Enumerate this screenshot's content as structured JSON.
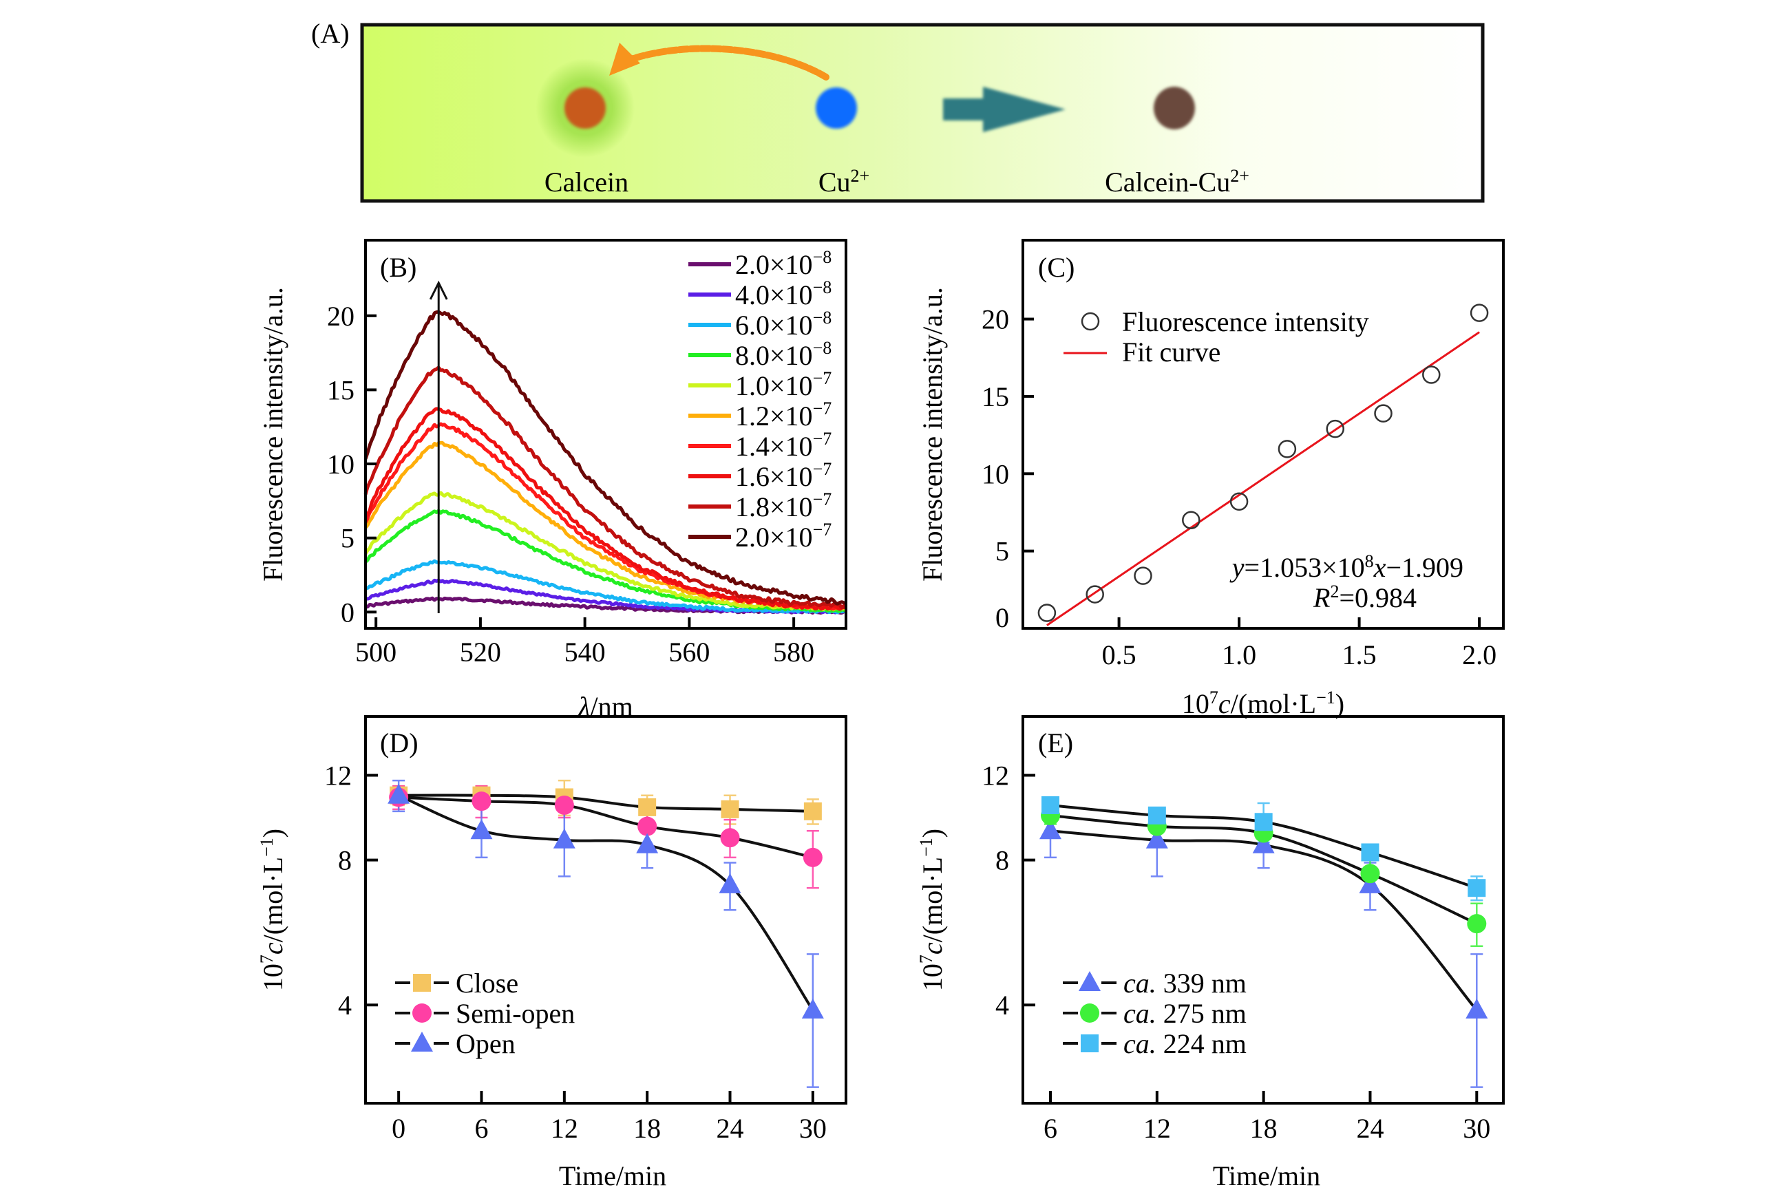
{
  "figure": {
    "panel_a": {
      "label": "(A)",
      "species": [
        {
          "name": "Calcein",
          "color": "#c85a1e",
          "glow": "#9ee048",
          "superscript": ""
        },
        {
          "name": "Cu",
          "color": "#0a6cff",
          "glow": "",
          "superscript": "2+"
        },
        {
          "name": "Calcein-Cu",
          "color": "#6b4a3c",
          "glow": "",
          "superscript": "2+"
        }
      ],
      "background_colors": [
        "#d2fd66",
        "#e4fbb0",
        "#ffffff"
      ],
      "curved_arrow_color": "#f7941d",
      "reaction_arrow_color": "#2f7a82"
    }
  },
  "chart_data": [
    {
      "panel": "B",
      "label": "(B)",
      "type": "line",
      "title": "",
      "xlabel": "λ/nm",
      "ylabel": "Fluorescence intensity/a.u.",
      "xlim": [
        498,
        590
      ],
      "ylim": [
        -1.1,
        25.1
      ],
      "xticks": [
        500,
        520,
        540,
        560,
        580
      ],
      "yticks": [
        0,
        5,
        10,
        15,
        20
      ],
      "grid": false,
      "legend_position": "top-right",
      "annotation": "arrow up at λ ≈ 512 nm (increasing concentration)",
      "annotation_x": 512,
      "x": [
        498,
        500,
        505,
        510,
        512,
        515,
        520,
        525,
        530,
        540,
        550,
        560,
        570,
        580,
        590
      ],
      "series": [
        {
          "name": "2.0×10⁻⁸",
          "base": "2.0×10",
          "exp": "−8",
          "color": "#6a0f6e",
          "values": [
            0.4,
            0.5,
            0.7,
            0.85,
            0.9,
            0.88,
            0.8,
            0.68,
            0.55,
            0.35,
            0.2,
            0.1,
            0.05,
            0.02,
            0.0
          ]
        },
        {
          "name": "4.0×10⁻⁸",
          "base": "4.0×10",
          "exp": "−8",
          "color": "#5b1ee6",
          "values": [
            0.9,
            1.1,
            1.6,
            2.0,
            2.1,
            2.05,
            1.85,
            1.55,
            1.25,
            0.75,
            0.4,
            0.2,
            0.1,
            0.05,
            0.02
          ]
        },
        {
          "name": "6.0×10⁻⁸",
          "base": "6.0×10",
          "exp": "−8",
          "color": "#17b5f5",
          "values": [
            1.6,
            1.9,
            2.7,
            3.3,
            3.4,
            3.3,
            3.0,
            2.6,
            2.1,
            1.3,
            0.7,
            0.35,
            0.15,
            0.08,
            0.05
          ]
        },
        {
          "name": "8.0×10⁻⁸",
          "base": "8.0×10",
          "exp": "−8",
          "color": "#22ee22",
          "values": [
            3.4,
            4.1,
            5.5,
            6.6,
            6.8,
            6.6,
            6.0,
            5.2,
            4.3,
            2.7,
            1.55,
            0.8,
            0.4,
            0.2,
            0.1
          ]
        },
        {
          "name": "1.0×10⁻⁷",
          "base": "1.0×10",
          "exp": "−7",
          "color": "#ccf41c",
          "values": [
            4.0,
            4.9,
            6.5,
            7.8,
            8.0,
            7.8,
            7.1,
            6.2,
            5.2,
            3.3,
            1.9,
            1.0,
            0.5,
            0.3,
            0.2
          ]
        },
        {
          "name": "1.2×10⁻⁷",
          "base": "1.2×10",
          "exp": "−7",
          "color": "#ffae0a",
          "values": [
            5.6,
            6.9,
            9.2,
            11.1,
            11.4,
            11.1,
            10.0,
            8.6,
            7.1,
            4.4,
            2.5,
            1.3,
            0.7,
            0.4,
            0.3
          ]
        },
        {
          "name": "1.4×10⁻⁷",
          "base": "1.4×10",
          "exp": "−7",
          "color": "#ff1a1a",
          "values": [
            6.0,
            7.5,
            10.2,
            12.3,
            12.7,
            12.4,
            11.3,
            9.8,
            8.1,
            5.0,
            2.9,
            1.5,
            0.8,
            0.4,
            0.3
          ]
        },
        {
          "name": "1.6×10⁻⁷",
          "base": "1.6×10",
          "exp": "−7",
          "color": "#ee1010",
          "values": [
            6.2,
            8.0,
            11.0,
            13.3,
            13.7,
            13.4,
            12.2,
            10.6,
            8.8,
            5.5,
            3.1,
            1.6,
            0.8,
            0.4,
            0.3
          ]
        },
        {
          "name": "1.8×10⁻⁷",
          "base": "1.8×10",
          "exp": "−7",
          "color": "#c2100f",
          "values": [
            8.0,
            9.8,
            13.3,
            16.0,
            16.4,
            16.0,
            14.6,
            12.8,
            10.7,
            6.9,
            4.0,
            2.2,
            1.1,
            0.6,
            0.4
          ]
        },
        {
          "name": "2.0×10⁻⁷",
          "base": "2.0×10",
          "exp": "−7",
          "color": "#6a0707",
          "values": [
            10.2,
            12.5,
            16.5,
            19.7,
            20.3,
            19.8,
            18.2,
            16.3,
            13.8,
            9.3,
            5.8,
            3.3,
            1.9,
            1.1,
            0.6
          ]
        }
      ]
    },
    {
      "panel": "C",
      "label": "(C)",
      "type": "scatter",
      "title": "",
      "xlabel": "10⁷c/(mol·L⁻¹)",
      "ylabel": "Fluorescence intensity/a.u.",
      "xlim": [
        0.1,
        2.1
      ],
      "ylim": [
        0,
        25.1
      ],
      "xticks": [
        0.5,
        1.0,
        1.5,
        2.0
      ],
      "xtick_labels": [
        "0.5",
        "1.0",
        "1.5",
        "2.0"
      ],
      "yticks": [
        0,
        5,
        10,
        15,
        20
      ],
      "grid": false,
      "legend_position": "top-left",
      "series": [
        {
          "name": "Fluorescence intensity",
          "marker": "open-circle",
          "color": "#333333",
          "x": [
            0.2,
            0.4,
            0.6,
            0.8,
            1.0,
            1.2,
            1.4,
            1.6,
            1.8,
            2.0
          ],
          "y": [
            1.0,
            2.2,
            3.4,
            7.0,
            8.2,
            11.6,
            12.9,
            13.9,
            16.4,
            20.4
          ]
        },
        {
          "name": "Fit curve",
          "marker": "line",
          "color": "#e8141c",
          "x": [
            0.2,
            2.0
          ],
          "slope": 10.53,
          "intercept": -1.909
        }
      ],
      "annotations": {
        "equation": {
          "y_var": "y",
          "mid": "=1.053×10",
          "exp": "8",
          "x_var": "x",
          "tail": "−1.909"
        },
        "r2": {
          "var": "R",
          "exp": "2",
          "value": "=0.984"
        }
      }
    },
    {
      "panel": "D",
      "label": "(D)",
      "type": "line",
      "title": "",
      "xlabel": "Time/min",
      "ylabel_prefix": "10",
      "ylabel_exp": "7",
      "ylabel_var": "c",
      "ylabel_tail": "/(mol·L",
      "ylabel_tail_exp": "−1",
      "ylabel_close": ")",
      "yscale": "log",
      "xlim": [
        -2.4,
        32.4
      ],
      "ylim": [
        2.5,
        15.9
      ],
      "xticks": [
        0,
        6,
        12,
        18,
        24,
        30
      ],
      "yticks": [
        4,
        8,
        12
      ],
      "grid": false,
      "legend_position": "bottom-left",
      "x": [
        0,
        6,
        12,
        18,
        24,
        30
      ],
      "series": [
        {
          "name": "Close",
          "marker": "square",
          "color": "#f5c560",
          "values": [
            10.9,
            10.9,
            10.8,
            10.3,
            10.2,
            10.1
          ],
          "errors": [
            0.5,
            0.5,
            0.9,
            0.6,
            0.7,
            0.6
          ]
        },
        {
          "name": "Semi-open",
          "marker": "circle",
          "color": "#ff3fa4",
          "values": [
            10.8,
            10.6,
            10.4,
            9.4,
            8.9,
            8.1
          ],
          "errors": [
            0.6,
            0.8,
            0.6,
            0.8,
            0.8,
            1.1
          ]
        },
        {
          "name": "Open",
          "marker": "triangle",
          "color": "#5b73f5",
          "values": [
            10.9,
            9.2,
            8.8,
            8.6,
            7.1,
            3.9
          ],
          "errors": [
            0.8,
            1.1,
            1.4,
            0.9,
            0.8,
            1.2
          ]
        }
      ]
    },
    {
      "panel": "E",
      "label": "(E)",
      "type": "line",
      "title": "",
      "xlabel": "Time/min",
      "ylabel_prefix": "10",
      "ylabel_exp": "7",
      "ylabel_var": "c",
      "ylabel_tail": "/(mol·L",
      "ylabel_tail_exp": "−1",
      "ylabel_close": ")",
      "yscale": "log",
      "xlim": [
        4.45,
        31.5
      ],
      "ylim": [
        2.5,
        15.9
      ],
      "xticks": [
        6,
        12,
        18,
        24,
        30
      ],
      "yticks": [
        4,
        8,
        12
      ],
      "grid": false,
      "legend_position": "bottom-left",
      "x": [
        6,
        12,
        18,
        24,
        30
      ],
      "series": [
        {
          "name": "ca. 339 nm",
          "prefix": "ca.",
          "rest": " 339 nm",
          "marker": "triangle",
          "color": "#5b73f5",
          "values": [
            9.2,
            8.8,
            8.6,
            7.1,
            3.9
          ],
          "errors": [
            1.1,
            1.4,
            0.9,
            0.8,
            1.2
          ]
        },
        {
          "name": "ca. 275 nm",
          "prefix": "ca.",
          "rest": " 275 nm",
          "marker": "circle",
          "color": "#3ef03a",
          "values": [
            9.9,
            9.4,
            9.1,
            7.5,
            5.9
          ],
          "errors": [
            0.4,
            0.3,
            0.5,
            0.5,
            0.6
          ]
        },
        {
          "name": "ca. 224 nm",
          "prefix": "ca.",
          "rest": " 224 nm",
          "marker": "square",
          "color": "#44bdf5",
          "values": [
            10.4,
            9.9,
            9.6,
            8.3,
            7.0
          ],
          "errors": [
            0.3,
            0.2,
            0.9,
            0.2,
            0.4
          ]
        }
      ]
    }
  ]
}
